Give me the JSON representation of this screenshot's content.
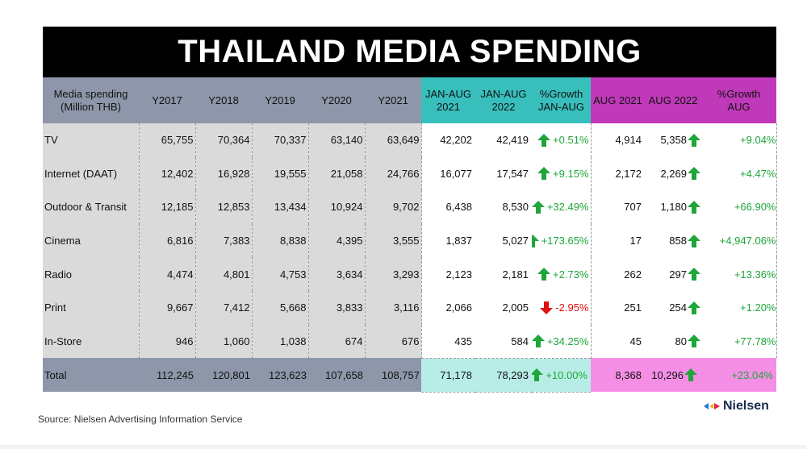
{
  "title": "THAILAND MEDIA SPENDING",
  "headers": {
    "label": [
      "Media spending",
      "(Million THB)"
    ],
    "years": [
      "Y2017",
      "Y2018",
      "Y2019",
      "Y2020",
      "Y2021"
    ],
    "jan2021": [
      "JAN-AUG",
      "2021"
    ],
    "jan2022": [
      "JAN-AUG",
      "2022"
    ],
    "jan_growth": [
      "%Growth",
      "JAN-AUG"
    ],
    "aug2021": "AUG 2021",
    "aug2022": "AUG 2022",
    "aug_growth": [
      "%Growth",
      "AUG"
    ]
  },
  "rows": [
    {
      "label": "TV",
      "years": [
        "65,755",
        "70,364",
        "70,337",
        "63,140",
        "63,649"
      ],
      "jan2021": "42,202",
      "jan2022": "42,419",
      "jan_dir": "up",
      "jan_growth": "+0.51%",
      "aug2021": "4,914",
      "aug2022": "5,358",
      "aug_dir": "up",
      "aug_growth": "+9.04%"
    },
    {
      "label": "Internet (DAAT)",
      "years": [
        "12,402",
        "16,928",
        "19,555",
        "21,058",
        "24,766"
      ],
      "jan2021": "16,077",
      "jan2022": "17,547",
      "jan_dir": "up",
      "jan_growth": "+9.15%",
      "aug2021": "2,172",
      "aug2022": "2,269",
      "aug_dir": "up",
      "aug_growth": "+4.47%"
    },
    {
      "label": "Outdoor & Transit",
      "years": [
        "12,185",
        "12,853",
        "13,434",
        "10,924",
        "9,702"
      ],
      "jan2021": "6,438",
      "jan2022": "8,530",
      "jan_dir": "up",
      "jan_growth": "+32.49%",
      "aug2021": "707",
      "aug2022": "1,180",
      "aug_dir": "up",
      "aug_growth": "+66.90%"
    },
    {
      "label": "Cinema",
      "years": [
        "6,816",
        "7,383",
        "8,838",
        "4,395",
        "3,555"
      ],
      "jan2021": "1,837",
      "jan2022": "5,027",
      "jan_dir": "up",
      "jan_growth": "+173.65%",
      "aug2021": "17",
      "aug2022": "858",
      "aug_dir": "up",
      "aug_growth": "+4,947.06%"
    },
    {
      "label": "Radio",
      "years": [
        "4,474",
        "4,801",
        "4,753",
        "3,634",
        "3,293"
      ],
      "jan2021": "2,123",
      "jan2022": "2,181",
      "jan_dir": "up",
      "jan_growth": "+2.73%",
      "aug2021": "262",
      "aug2022": "297",
      "aug_dir": "up",
      "aug_growth": "+13.36%"
    },
    {
      "label": "Print",
      "years": [
        "9,667",
        "7,412",
        "5,668",
        "3,833",
        "3,116"
      ],
      "jan2021": "2,066",
      "jan2022": "2,005",
      "jan_dir": "down",
      "jan_growth": "-2.95%",
      "aug2021": "251",
      "aug2022": "254",
      "aug_dir": "up",
      "aug_growth": "+1.20%"
    },
    {
      "label": "In-Store",
      "years": [
        "946",
        "1,060",
        "1,038",
        "674",
        "676"
      ],
      "jan2021": "435",
      "jan2022": "584",
      "jan_dir": "up",
      "jan_growth": "+34.25%",
      "aug2021": "45",
      "aug2022": "80",
      "aug_dir": "up",
      "aug_growth": "+77.78%"
    }
  ],
  "total": {
    "label": "Total",
    "years": [
      "112,245",
      "120,801",
      "123,623",
      "107,658",
      "108,757"
    ],
    "jan2021": "71,178",
    "jan2022": "78,293",
    "jan_dir": "up",
    "jan_growth": "+10.00%",
    "aug2021": "8,368",
    "aug2022": "10,296",
    "aug_dir": "up",
    "aug_growth": "+23.04%"
  },
  "source": "Source: Nielsen Advertising Information Service",
  "logo_text": "Nielsen",
  "colors": {
    "header_gray": "#8e97a9",
    "header_teal": "#38bfbc",
    "header_magenta": "#c039b9",
    "total_teal": "#b8ede7",
    "total_pink": "#f58fe6",
    "up_green": "#1fa63a",
    "down_red": "#e01010"
  }
}
